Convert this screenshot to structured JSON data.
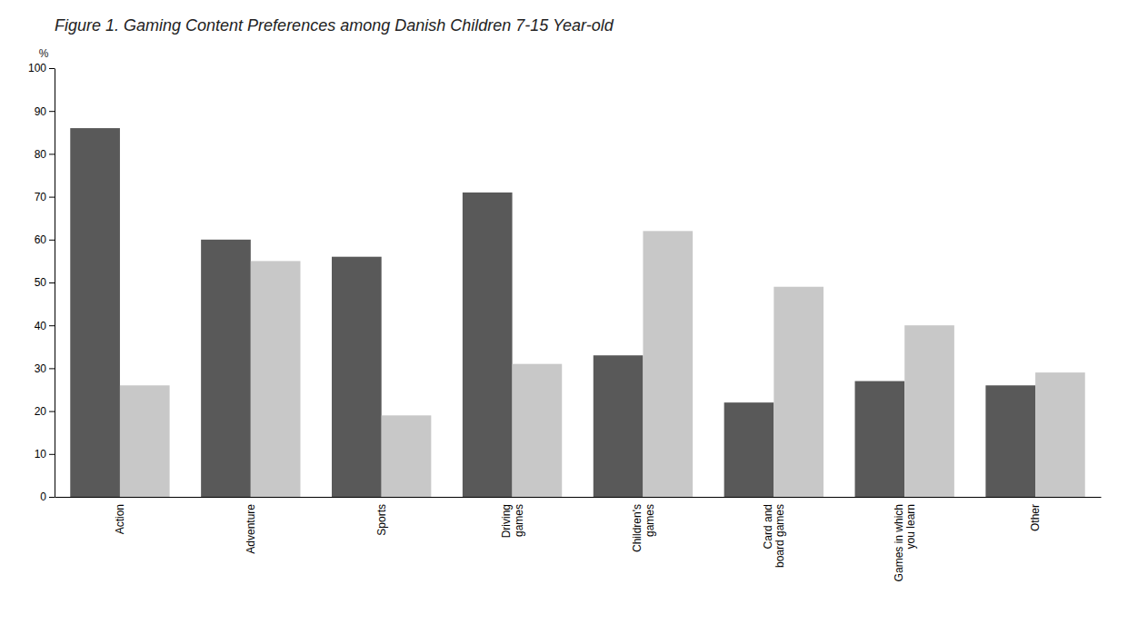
{
  "chart_data": {
    "type": "bar",
    "title": "Figure 1. Gaming Content Preferences among Danish Children 7-15 Year-old",
    "ylabel": "%",
    "categories": [
      "Action",
      "Adventure",
      "Sports",
      "Driving\ngames",
      "Children's\ngames",
      "Card and\nboard games",
      "Games in which\nyou learn",
      "Other"
    ],
    "series": [
      {
        "color": "#595959",
        "values": [
          86,
          60,
          56,
          71,
          33,
          22,
          27,
          26
        ]
      },
      {
        "color": "#c8c8c8",
        "values": [
          26,
          55,
          19,
          31,
          62,
          49,
          40,
          29
        ]
      }
    ],
    "ylim": [
      0,
      100
    ],
    "yticks": [
      0,
      10,
      20,
      30,
      40,
      50,
      60,
      70,
      80,
      90,
      100
    ],
    "grid": false
  }
}
